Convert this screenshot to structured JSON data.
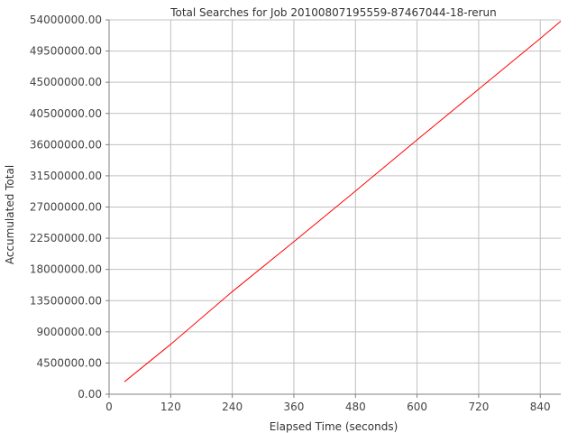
{
  "chart_data": {
    "type": "line",
    "title": "Total Searches for Job 20100807195559-87467044-18-rerun",
    "xlabel": "Elapsed Time (seconds)",
    "ylabel": "Accumulated Total",
    "xlim": [
      0,
      880
    ],
    "ylim": [
      0,
      54000000
    ],
    "x_ticks": [
      0,
      120,
      240,
      360,
      480,
      600,
      720,
      840
    ],
    "x_tick_labels": [
      "0",
      "120",
      "240",
      "360",
      "480",
      "600",
      "720",
      "840"
    ],
    "y_ticks": [
      0,
      4500000,
      9000000,
      13500000,
      18000000,
      22500000,
      27000000,
      31500000,
      36000000,
      40500000,
      45000000,
      49500000,
      54000000
    ],
    "y_tick_labels": [
      "0.00",
      "4500000.00",
      "9000000.00",
      "13500000.00",
      "18000000.00",
      "22500000.00",
      "27000000.00",
      "31500000.00",
      "36000000.00",
      "40500000.00",
      "45000000.00",
      "49500000.00",
      "54000000.00"
    ],
    "grid": true,
    "series": [
      {
        "color": "#ff0000",
        "x": [
          30,
          120,
          240,
          360,
          480,
          600,
          720,
          840,
          880
        ],
        "y": [
          1800000,
          7200000,
          14800000,
          22000000,
          29300000,
          36700000,
          44000000,
          51300000,
          53800000
        ]
      }
    ]
  }
}
